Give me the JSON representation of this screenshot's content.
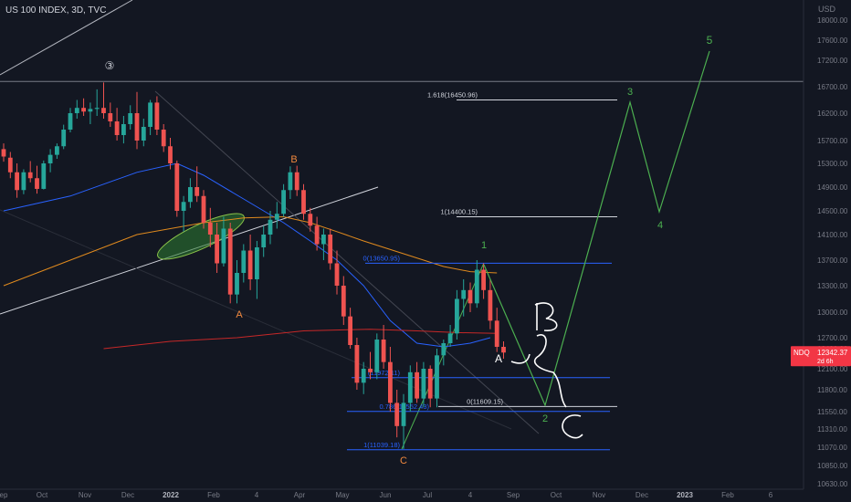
{
  "header": {
    "title": "US 100 INDEX, 3D, TVC"
  },
  "chart_data": {
    "type": "candlestick",
    "currency_label": "USD",
    "y_axis_ticks": [
      18000,
      17600,
      17200,
      16700,
      16200,
      15700,
      15300,
      14900,
      14500,
      14100,
      13700,
      13300,
      13000,
      12700,
      12400,
      12100,
      11800,
      11550,
      11310,
      11070,
      10850,
      10630
    ],
    "x_axis_ticks": [
      "ep",
      "Oct",
      "Nov",
      "Dec",
      "2022",
      "Feb",
      "4",
      "Apr",
      "May",
      "Jun",
      "Jul",
      "4",
      "Sep",
      "Oct",
      "Nov",
      "Dec",
      "2023",
      "Feb",
      "6"
    ],
    "price_tag": {
      "symbol": "NDQ",
      "price": "12342.37",
      "countdown": "2d 6h",
      "value": 12342.37
    },
    "candles": [
      {
        "o": 15550,
        "h": 15650,
        "l": 15330,
        "c": 15420
      },
      {
        "o": 15400,
        "h": 15500,
        "l": 15050,
        "c": 15150
      },
      {
        "o": 15150,
        "h": 15300,
        "l": 14720,
        "c": 14850
      },
      {
        "o": 14850,
        "h": 15200,
        "l": 14780,
        "c": 15150
      },
      {
        "o": 15150,
        "h": 15340,
        "l": 14980,
        "c": 15050
      },
      {
        "o": 15050,
        "h": 15260,
        "l": 14790,
        "c": 14870
      },
      {
        "o": 14870,
        "h": 15350,
        "l": 14860,
        "c": 15300
      },
      {
        "o": 15300,
        "h": 15550,
        "l": 15150,
        "c": 15450
      },
      {
        "o": 15450,
        "h": 15650,
        "l": 15380,
        "c": 15600
      },
      {
        "o": 15600,
        "h": 15990,
        "l": 15550,
        "c": 15900
      },
      {
        "o": 15900,
        "h": 16300,
        "l": 15850,
        "c": 16200
      },
      {
        "o": 16200,
        "h": 16450,
        "l": 16100,
        "c": 16300
      },
      {
        "o": 16300,
        "h": 16480,
        "l": 16150,
        "c": 16230
      },
      {
        "o": 16230,
        "h": 16400,
        "l": 16000,
        "c": 16280
      },
      {
        "o": 16280,
        "h": 16650,
        "l": 16150,
        "c": 16300
      },
      {
        "o": 16300,
        "h": 16780,
        "l": 16100,
        "c": 16200
      },
      {
        "o": 16200,
        "h": 16400,
        "l": 15950,
        "c": 16050
      },
      {
        "o": 16050,
        "h": 16300,
        "l": 15700,
        "c": 15800
      },
      {
        "o": 15800,
        "h": 16150,
        "l": 15650,
        "c": 16000
      },
      {
        "o": 16000,
        "h": 16350,
        "l": 15900,
        "c": 16200
      },
      {
        "o": 16200,
        "h": 16600,
        "l": 15550,
        "c": 15700
      },
      {
        "o": 15700,
        "h": 16100,
        "l": 15600,
        "c": 15950
      },
      {
        "o": 15950,
        "h": 16450,
        "l": 15800,
        "c": 16400
      },
      {
        "o": 16400,
        "h": 16520,
        "l": 15800,
        "c": 15900
      },
      {
        "o": 15900,
        "h": 16000,
        "l": 15500,
        "c": 15600
      },
      {
        "o": 15600,
        "h": 15750,
        "l": 15200,
        "c": 15300
      },
      {
        "o": 15300,
        "h": 15350,
        "l": 14400,
        "c": 14500
      },
      {
        "o": 14500,
        "h": 14750,
        "l": 14150,
        "c": 14650
      },
      {
        "o": 14650,
        "h": 15050,
        "l": 14550,
        "c": 14900
      },
      {
        "o": 14900,
        "h": 15250,
        "l": 14650,
        "c": 14750
      },
      {
        "o": 14750,
        "h": 14850,
        "l": 14200,
        "c": 14300
      },
      {
        "o": 14300,
        "h": 14550,
        "l": 13900,
        "c": 14100
      },
      {
        "o": 14100,
        "h": 14300,
        "l": 13500,
        "c": 13650
      },
      {
        "o": 13650,
        "h": 14400,
        "l": 13600,
        "c": 14200
      },
      {
        "o": 14200,
        "h": 14300,
        "l": 13100,
        "c": 13200
      },
      {
        "o": 13200,
        "h": 13700,
        "l": 13100,
        "c": 13500
      },
      {
        "o": 13500,
        "h": 13950,
        "l": 13350,
        "c": 13850
      },
      {
        "o": 13850,
        "h": 14100,
        "l": 13250,
        "c": 13400
      },
      {
        "o": 13400,
        "h": 14000,
        "l": 13150,
        "c": 13900
      },
      {
        "o": 13900,
        "h": 14250,
        "l": 13750,
        "c": 14100
      },
      {
        "o": 14100,
        "h": 14500,
        "l": 13950,
        "c": 14350
      },
      {
        "o": 14350,
        "h": 14650,
        "l": 14200,
        "c": 14450
      },
      {
        "o": 14450,
        "h": 14950,
        "l": 14400,
        "c": 14850
      },
      {
        "o": 14850,
        "h": 15250,
        "l": 14700,
        "c": 15150
      },
      {
        "o": 15150,
        "h": 15260,
        "l": 14750,
        "c": 14850
      },
      {
        "o": 14850,
        "h": 14950,
        "l": 14350,
        "c": 14450
      },
      {
        "o": 14450,
        "h": 14550,
        "l": 14150,
        "c": 14250
      },
      {
        "o": 14250,
        "h": 14400,
        "l": 13850,
        "c": 13950
      },
      {
        "o": 13950,
        "h": 14200,
        "l": 13700,
        "c": 14100
      },
      {
        "o": 14100,
        "h": 14200,
        "l": 13550,
        "c": 13650
      },
      {
        "o": 13650,
        "h": 13850,
        "l": 13200,
        "c": 13300
      },
      {
        "o": 13300,
        "h": 13450,
        "l": 12850,
        "c": 12950
      },
      {
        "o": 12950,
        "h": 13050,
        "l": 12400,
        "c": 12500
      },
      {
        "o": 12500,
        "h": 12700,
        "l": 11800,
        "c": 11900
      },
      {
        "o": 11900,
        "h": 12200,
        "l": 11750,
        "c": 12100
      },
      {
        "o": 12100,
        "h": 12350,
        "l": 11950,
        "c": 12050
      },
      {
        "o": 12050,
        "h": 12750,
        "l": 11950,
        "c": 12650
      },
      {
        "o": 12650,
        "h": 12850,
        "l": 12100,
        "c": 12200
      },
      {
        "o": 12200,
        "h": 12450,
        "l": 11550,
        "c": 11650
      },
      {
        "o": 11650,
        "h": 11800,
        "l": 11200,
        "c": 11350
      },
      {
        "o": 11350,
        "h": 11750,
        "l": 11050,
        "c": 11650
      },
      {
        "o": 11650,
        "h": 12150,
        "l": 11550,
        "c": 12050
      },
      {
        "o": 12050,
        "h": 12200,
        "l": 11650,
        "c": 11700
      },
      {
        "o": 11700,
        "h": 12200,
        "l": 11600,
        "c": 12100
      },
      {
        "o": 12100,
        "h": 12150,
        "l": 11600,
        "c": 11700
      },
      {
        "o": 11700,
        "h": 12400,
        "l": 11600,
        "c": 12300
      },
      {
        "o": 12300,
        "h": 12650,
        "l": 12150,
        "c": 12550
      },
      {
        "o": 12550,
        "h": 12850,
        "l": 12450,
        "c": 12750
      },
      {
        "o": 12750,
        "h": 13250,
        "l": 12650,
        "c": 13150
      },
      {
        "o": 13150,
        "h": 13400,
        "l": 12950,
        "c": 13250
      },
      {
        "o": 13250,
        "h": 13350,
        "l": 13000,
        "c": 13100
      },
      {
        "o": 13100,
        "h": 13700,
        "l": 13050,
        "c": 13550
      },
      {
        "o": 13550,
        "h": 13650,
        "l": 13150,
        "c": 13250
      },
      {
        "o": 13250,
        "h": 13400,
        "l": 12800,
        "c": 12900
      },
      {
        "o": 12900,
        "h": 13050,
        "l": 12350,
        "c": 12450
      },
      {
        "o": 12450,
        "h": 12600,
        "l": 12250,
        "c": 12342
      }
    ],
    "moving_averages": [
      {
        "color": "#2962ff",
        "points": [
          [
            0,
            14500
          ],
          [
            10,
            14750
          ],
          [
            20,
            15150
          ],
          [
            26,
            15300
          ],
          [
            30,
            15100
          ],
          [
            36,
            14700
          ],
          [
            42,
            14300
          ],
          [
            46,
            14000
          ],
          [
            50,
            13700
          ],
          [
            54,
            13300
          ],
          [
            58,
            12900
          ],
          [
            62,
            12550
          ],
          [
            66,
            12450
          ],
          [
            70,
            12550
          ],
          [
            73,
            12700
          ]
        ]
      },
      {
        "color": "#e08a1e",
        "points": [
          [
            0,
            13300
          ],
          [
            10,
            13700
          ],
          [
            20,
            14100
          ],
          [
            30,
            14300
          ],
          [
            36,
            14380
          ],
          [
            42,
            14400
          ],
          [
            46,
            14300
          ],
          [
            50,
            14150
          ],
          [
            54,
            14000
          ],
          [
            60,
            13800
          ],
          [
            66,
            13600
          ],
          [
            70,
            13520
          ],
          [
            74,
            13500
          ]
        ]
      },
      {
        "color": "#c62828",
        "points": [
          [
            15,
            12400
          ],
          [
            25,
            12600
          ],
          [
            35,
            12700
          ],
          [
            45,
            12780
          ],
          [
            55,
            12800
          ],
          [
            62,
            12780
          ],
          [
            68,
            12760
          ],
          [
            74,
            12750
          ]
        ]
      }
    ],
    "fib_levels": [
      {
        "label": "1.618(16450.96)",
        "value": 16450.96,
        "color": "#d1d4dc"
      },
      {
        "label": "1(14400.15)",
        "value": 14400.15,
        "color": "#d1d4dc"
      },
      {
        "label": "0(13650.95)",
        "value": 13650.95,
        "color": "#2962ff"
      },
      {
        "label": "(11972.11)",
        "value": 11972.11,
        "color": "#2962ff"
      },
      {
        "label": "0(11609.15)",
        "value": 11609.15,
        "color": "#d1d4dc"
      },
      {
        "label": "0.786(11552.43)",
        "value": 11552.43,
        "color": "#2962ff"
      },
      {
        "label": "1(11039.18)",
        "value": 11039.18,
        "color": "#2962ff"
      }
    ],
    "horizontal_lines": [
      {
        "value": 16800,
        "color": "#787b86"
      }
    ],
    "wave_labels": [
      {
        "text": "③",
        "color": "#d1d4dc"
      },
      {
        "text": "B",
        "color": "#f0883e"
      },
      {
        "text": "A",
        "color": "#f0883e"
      },
      {
        "text": "C",
        "color": "#f0883e"
      },
      {
        "text": "1",
        "color": "#4caf50"
      },
      {
        "text": "2",
        "color": "#4caf50"
      },
      {
        "text": "3",
        "color": "#4caf50"
      },
      {
        "text": "4",
        "color": "#4caf50"
      },
      {
        "text": "5",
        "color": "#4caf50"
      },
      {
        "text": "A",
        "color": "#ffffff"
      }
    ],
    "projection_path_values": [
      11220,
      13700,
      11700,
      16400,
      14480,
      17550
    ],
    "colors": {
      "background": "#131722",
      "up": "#26a69a",
      "down": "#ef5350",
      "grid": "#1e2230",
      "axis_text": "#787b86",
      "projection": "#4caf50",
      "price_tag": "#f23645"
    }
  }
}
